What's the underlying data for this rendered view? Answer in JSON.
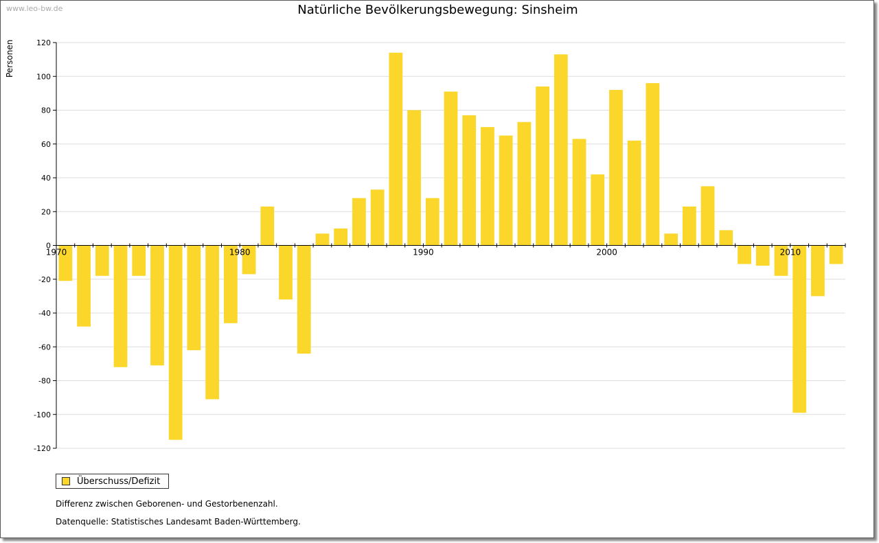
{
  "watermark": "www.leo-bw.de",
  "colors": {
    "bar": "#fcd72b",
    "grid": "#dddddd",
    "axis": "#000000"
  },
  "legend": {
    "label": "Überschuss/Defizit"
  },
  "notes": {
    "line1": "Differenz zwischen Geborenen- und Gestorbenenzahl.",
    "line2": "Datenquelle: Statistisches Landesamt Baden-Württemberg."
  },
  "chart_data": {
    "type": "bar",
    "title": "Natürliche Bevölkerungsbewegung: Sinsheim",
    "xlabel": "",
    "ylabel": "Personen",
    "ylim": [
      -120,
      120
    ],
    "yticks": [
      120,
      100,
      80,
      60,
      40,
      20,
      0,
      -20,
      -40,
      -60,
      -80,
      -100,
      -120
    ],
    "xtick_labels": [
      "1970",
      "1980",
      "1990",
      "2000",
      "2010"
    ],
    "categories": [
      "1970",
      "1971",
      "1972",
      "1973",
      "1974",
      "1975",
      "1976",
      "1977",
      "1978",
      "1979",
      "1980",
      "1981",
      "1982",
      "1983",
      "1984",
      "1985",
      "1986",
      "1987",
      "1988",
      "1989",
      "1990",
      "1991",
      "1992",
      "1993",
      "1994",
      "1995",
      "1996",
      "1997",
      "1998",
      "1999",
      "2000",
      "2001",
      "2002",
      "2003",
      "2004",
      "2005",
      "2006",
      "2007",
      "2008",
      "2009",
      "2010",
      "2011",
      "2012"
    ],
    "series": [
      {
        "name": "Überschuss/Defizit",
        "values": [
          -21,
          -48,
          -18,
          -72,
          -18,
          -71,
          -115,
          -62,
          -91,
          -46,
          -17,
          23,
          -32,
          -64,
          7,
          10,
          28,
          33,
          114,
          80,
          28,
          91,
          77,
          70,
          65,
          73,
          94,
          113,
          63,
          42,
          92,
          62,
          96,
          7,
          23,
          35,
          9,
          -11,
          -12,
          -18,
          -99,
          -30,
          -11
        ]
      }
    ],
    "grid": true,
    "legend_position": "bottom-left"
  }
}
